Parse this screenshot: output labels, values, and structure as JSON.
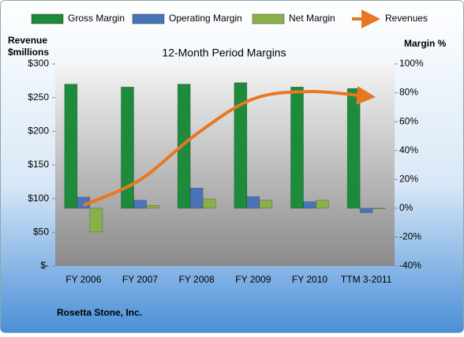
{
  "chart_data": {
    "type": "bar",
    "title": "12-Month Period Margins",
    "y_label": [
      "Revenue",
      "$millions"
    ],
    "y2_label": "Margin %",
    "footer": "Rosetta Stone, Inc.",
    "categories": [
      "FY 2006",
      "FY 2007",
      "FY 2008",
      "FY 2009",
      "FY 2010",
      "TTM 3-2011"
    ],
    "ylim": [
      0,
      300
    ],
    "yticks": [
      {
        "value": 0,
        "label": "$-"
      },
      {
        "value": 50,
        "label": "$50"
      },
      {
        "value": 100,
        "label": "$100"
      },
      {
        "value": 150,
        "label": "$150"
      },
      {
        "value": 200,
        "label": "$200"
      },
      {
        "value": 250,
        "label": "$250"
      },
      {
        "value": 300,
        "label": "$300"
      }
    ],
    "y2lim": [
      -40,
      100
    ],
    "y2ticks": [
      {
        "value": -40,
        "label": "-40%"
      },
      {
        "value": -20,
        "label": "-20%"
      },
      {
        "value": 0,
        "label": "0%"
      },
      {
        "value": 20,
        "label": "20%"
      },
      {
        "value": 40,
        "label": "40%"
      },
      {
        "value": 60,
        "label": "60%"
      },
      {
        "value": 80,
        "label": "80%"
      },
      {
        "value": 100,
        "label": "100%"
      }
    ],
    "series": [
      {
        "name": "Gross Margin",
        "type": "bar",
        "axis": "y2",
        "color": "#1e8a3c",
        "values": [
          86,
          84,
          86,
          87,
          84,
          83
        ]
      },
      {
        "name": "Operating Margin",
        "type": "bar",
        "axis": "y2",
        "color": "#4a74b8",
        "values": [
          7.7,
          5.5,
          14,
          8,
          4.5,
          -3
        ]
      },
      {
        "name": "Net Margin",
        "type": "bar",
        "axis": "y2",
        "color": "#8ab04a",
        "values": [
          -16.4,
          2,
          6.5,
          5.5,
          5.5,
          -0.5
        ]
      },
      {
        "name": "Revenues",
        "type": "line",
        "axis": "y",
        "color": "#e87722",
        "values": [
          90,
          128,
          196,
          248,
          259,
          252
        ]
      }
    ]
  }
}
